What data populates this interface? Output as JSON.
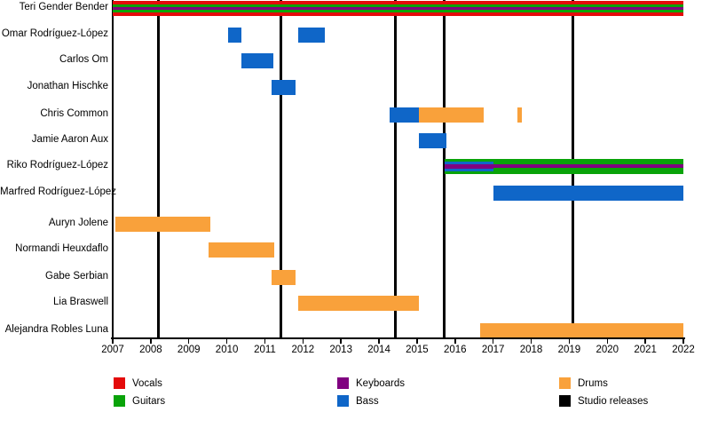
{
  "chart_data": {
    "type": "timeline",
    "description": "Band members timeline (gantt-style) with instrument color coding and studio release markers",
    "x_axis": {
      "start": 2007,
      "end": 2022,
      "ticks": [
        2007,
        2008,
        2009,
        2010,
        2011,
        2012,
        2013,
        2014,
        2015,
        2016,
        2017,
        2018,
        2019,
        2020,
        2021,
        2022
      ]
    },
    "colors": {
      "vocals": "#e40b0b",
      "guitars": "#09a309",
      "keyboards": "#800080",
      "bass": "#0f66c8",
      "drums": "#f9a13b",
      "releases": "#000000"
    },
    "members": [
      {
        "label": "Teri Gender Bender",
        "bars": [
          {
            "from": 2007.0,
            "to": 2022.0,
            "stripes": [
              [
                "vocals",
                4
              ],
              [
                "guitars",
                3
              ],
              [
                "keyboards",
                3
              ],
              [
                "guitars",
                3
              ],
              [
                "vocals",
                4
              ]
            ]
          }
        ]
      },
      {
        "label": "Omar Rodríguez-López",
        "bars": [
          {
            "from": 2010.04,
            "to": 2010.38,
            "stripes": [
              [
                "bass",
                17
              ]
            ]
          },
          {
            "from": 2011.88,
            "to": 2012.58,
            "stripes": [
              [
                "bass",
                17
              ]
            ]
          }
        ]
      },
      {
        "label": "Carlos Om",
        "bars": [
          {
            "from": 2010.38,
            "to": 2011.22,
            "stripes": [
              [
                "bass",
                17
              ]
            ]
          }
        ]
      },
      {
        "label": "Jonathan Hischke",
        "bars": [
          {
            "from": 2011.18,
            "to": 2011.8,
            "stripes": [
              [
                "bass",
                17
              ]
            ]
          }
        ]
      },
      {
        "label": "Chris Common",
        "bars": [
          {
            "from": 2014.28,
            "to": 2015.04,
            "stripes": [
              [
                "bass",
                17
              ]
            ]
          },
          {
            "from": 2015.04,
            "to": 2016.75,
            "stripes": [
              [
                "drums",
                17
              ]
            ]
          },
          {
            "from": 2017.64,
            "to": 2017.75,
            "stripes": [
              [
                "drums",
                17
              ]
            ]
          }
        ]
      },
      {
        "label": "Jamie Aaron Aux",
        "bars": [
          {
            "from": 2015.04,
            "to": 2015.78,
            "stripes": [
              [
                "bass",
                17
              ]
            ]
          }
        ]
      },
      {
        "label": "Riko Rodríguez-López",
        "bars": [
          {
            "from": 2015.72,
            "to": 2017.0,
            "stripes": [
              [
                "guitars",
                3
              ],
              [
                "bass",
                3
              ],
              [
                "keyboards",
                5
              ],
              [
                "bass",
                3
              ],
              [
                "guitars",
                3
              ]
            ]
          },
          {
            "from": 2017.0,
            "to": 2022.0,
            "stripes": [
              [
                "guitars",
                6.5
              ],
              [
                "keyboards",
                4
              ],
              [
                "guitars",
                6.5
              ]
            ]
          }
        ]
      },
      {
        "label": "Marfred Rodríguez-López",
        "bars": [
          {
            "from": 2017.0,
            "to": 2022.0,
            "stripes": [
              [
                "bass",
                17
              ]
            ]
          }
        ]
      },
      {
        "label": "Auryn Jolene",
        "bars": [
          {
            "from": 2007.08,
            "to": 2009.57,
            "stripes": [
              [
                "drums",
                17
              ]
            ]
          }
        ]
      },
      {
        "label": "Normandi Heuxdaflo",
        "bars": [
          {
            "from": 2009.52,
            "to": 2011.25,
            "stripes": [
              [
                "drums",
                17
              ]
            ]
          }
        ]
      },
      {
        "label": "Gabe Serbian",
        "bars": [
          {
            "from": 2011.18,
            "to": 2011.8,
            "stripes": [
              [
                "drums",
                17
              ]
            ]
          }
        ]
      },
      {
        "label": "Lia Braswell",
        "bars": [
          {
            "from": 2011.88,
            "to": 2015.05,
            "stripes": [
              [
                "drums",
                17
              ]
            ]
          }
        ]
      },
      {
        "label": "Alejandra Robles Luna",
        "bars": [
          {
            "from": 2016.66,
            "to": 2022.0,
            "stripes": [
              [
                "drums",
                17
              ]
            ]
          }
        ]
      }
    ],
    "studio_releases": [
      2008.2,
      2011.43,
      2014.42,
      2015.72,
      2019.1
    ],
    "legend": [
      {
        "label": "Vocals",
        "key": "vocals",
        "col": 0,
        "row": 0
      },
      {
        "label": "Guitars",
        "key": "guitars",
        "col": 0,
        "row": 1
      },
      {
        "label": "Keyboards",
        "key": "keyboards",
        "col": 1,
        "row": 0
      },
      {
        "label": "Bass",
        "key": "bass",
        "col": 1,
        "row": 1
      },
      {
        "label": "Drums",
        "key": "drums",
        "col": 2,
        "row": 0
      },
      {
        "label": "Studio releases",
        "key": "releases",
        "col": 2,
        "row": 1
      }
    ]
  }
}
